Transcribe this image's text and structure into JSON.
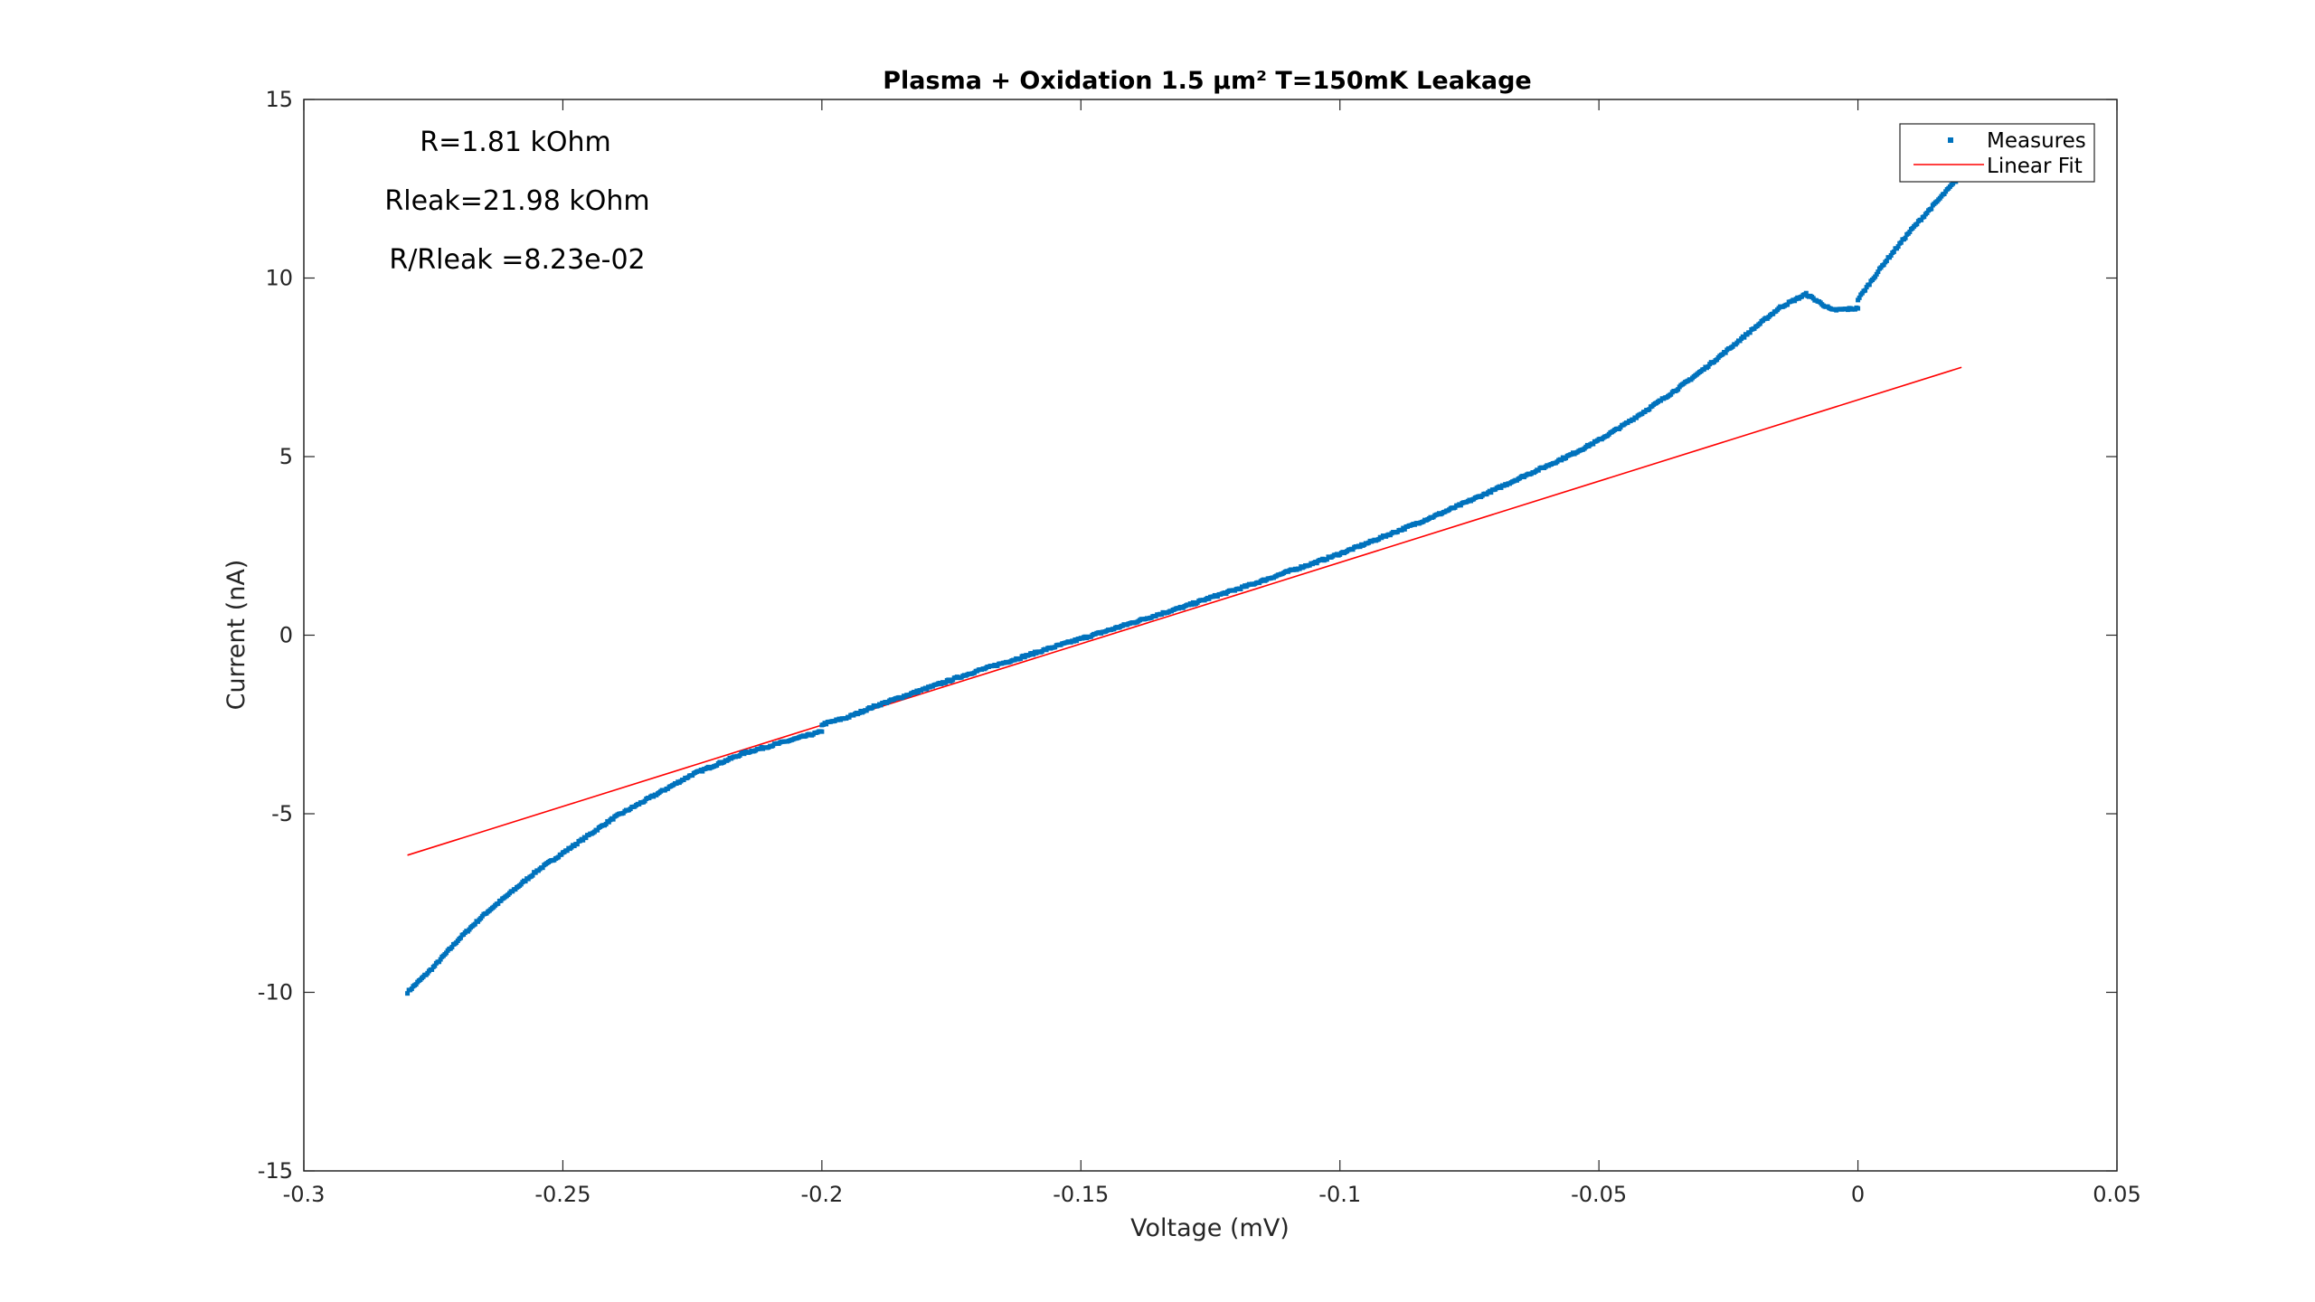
{
  "chart_data": {
    "type": "scatter",
    "title": "Plasma + Oxidation 1.5 µm² T=150mK Leakage",
    "xlabel": "Voltage (mV)",
    "ylabel": "Current (nA)",
    "xlim": [
      -0.3,
      0.05
    ],
    "ylim": [
      -15,
      15
    ],
    "xticks": [
      -0.3,
      -0.25,
      -0.2,
      -0.15,
      -0.1,
      -0.05,
      0,
      0.05
    ],
    "xtick_labels": [
      "-0.3",
      "-0.25",
      "-0.2",
      "-0.15",
      "-0.1",
      "-0.05",
      "0",
      "0.05"
    ],
    "yticks": [
      -15,
      -10,
      -5,
      0,
      5,
      10,
      15
    ],
    "ytick_labels": [
      "-15",
      "-10",
      "-5",
      "0",
      "5",
      "10",
      "15"
    ],
    "grid": false,
    "legend": {
      "placement": "top-right",
      "entries": [
        "Measures",
        "Linear Fit"
      ]
    },
    "annotations": [
      "R=1.81 kOhm",
      "Rleak=21.98 kOhm",
      "R/Rleak =8.23e-02"
    ],
    "series": [
      {
        "name": "Measures",
        "kind": "scatter",
        "color": "#0072BD",
        "x": [
          -0.28,
          -0.275,
          -0.27,
          -0.265,
          -0.26,
          -0.255,
          -0.25,
          -0.245,
          -0.24,
          -0.235,
          -0.23,
          -0.225,
          -0.22,
          -0.215,
          -0.21,
          -0.205,
          -0.2,
          -0.2,
          -0.195,
          -0.19,
          -0.185,
          -0.18,
          -0.175,
          -0.17,
          -0.165,
          -0.16,
          -0.155,
          -0.15,
          -0.145,
          -0.14,
          -0.135,
          -0.13,
          -0.125,
          -0.12,
          -0.115,
          -0.11,
          -0.105,
          -0.1,
          -0.095,
          -0.09,
          -0.085,
          -0.08,
          -0.075,
          -0.07,
          -0.065,
          -0.06,
          -0.055,
          -0.05,
          -0.045,
          -0.04,
          -0.035,
          -0.03,
          -0.025,
          -0.02,
          -0.015,
          -0.01,
          -0.005,
          0,
          0,
          0.005,
          0.01,
          0.015,
          0.02
        ],
        "y": [
          -10.0,
          -9.3,
          -8.5,
          -7.8,
          -7.2,
          -6.6,
          -6.1,
          -5.6,
          -5.1,
          -4.7,
          -4.3,
          -3.9,
          -3.6,
          -3.3,
          -3.1,
          -2.9,
          -2.7,
          -2.5,
          -2.3,
          -2.0,
          -1.75,
          -1.5,
          -1.25,
          -1.0,
          -0.78,
          -0.55,
          -0.32,
          -0.1,
          0.12,
          0.35,
          0.58,
          0.8,
          1.05,
          1.28,
          1.52,
          1.78,
          2.02,
          2.28,
          2.56,
          2.85,
          3.14,
          3.44,
          3.76,
          4.08,
          4.42,
          4.74,
          5.08,
          5.46,
          5.9,
          6.38,
          6.88,
          7.42,
          8.0,
          8.6,
          9.18,
          9.55,
          9.1,
          9.15,
          9.4,
          10.4,
          11.3,
          12.1,
          12.9
        ]
      },
      {
        "name": "Linear Fit",
        "kind": "line",
        "color": "#FF0000",
        "x": [
          -0.28,
          0.02
        ],
        "y": [
          -6.16,
          7.5
        ]
      }
    ]
  }
}
